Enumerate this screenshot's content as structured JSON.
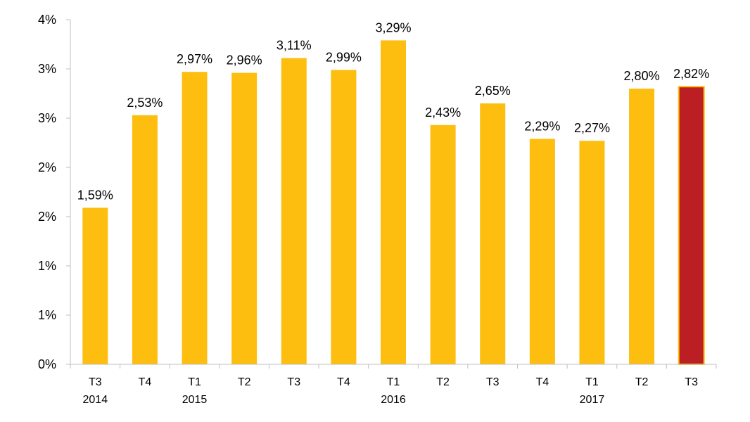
{
  "chart_data": {
    "type": "bar",
    "categories": [
      {
        "quarter": "T3",
        "year": "2014"
      },
      {
        "quarter": "T4",
        "year": ""
      },
      {
        "quarter": "T1",
        "year": "2015"
      },
      {
        "quarter": "T2",
        "year": ""
      },
      {
        "quarter": "T3",
        "year": ""
      },
      {
        "quarter": "T4",
        "year": ""
      },
      {
        "quarter": "T1",
        "year": "2016"
      },
      {
        "quarter": "T2",
        "year": ""
      },
      {
        "quarter": "T3",
        "year": ""
      },
      {
        "quarter": "T4",
        "year": ""
      },
      {
        "quarter": "T1",
        "year": "2017"
      },
      {
        "quarter": "T2",
        "year": ""
      },
      {
        "quarter": "T3",
        "year": ""
      }
    ],
    "values": [
      1.59,
      2.53,
      2.97,
      2.96,
      3.11,
      2.99,
      3.29,
      2.43,
      2.65,
      2.29,
      2.27,
      2.8,
      2.82
    ],
    "data_labels": [
      "1,59%",
      "2,53%",
      "2,97%",
      "2,96%",
      "3,11%",
      "2,99%",
      "3,29%",
      "2,43%",
      "2,65%",
      "2,29%",
      "2,27%",
      "2,80%",
      "2,82%"
    ],
    "y_ticks": [
      "0%",
      "1%",
      "1%",
      "2%",
      "2%",
      "3%",
      "3%",
      "4%"
    ],
    "y_tick_values": [
      0,
      0.5,
      1.0,
      1.5,
      2.0,
      2.5,
      3.0,
      3.5
    ],
    "ylim": [
      0,
      3.5
    ],
    "title": "",
    "xlabel": "",
    "ylabel": "",
    "grid": false,
    "legend": "none",
    "colors": {
      "bar": "#fdbe10",
      "highlight_bar": "#bb1e23",
      "highlight_border": "#fdbe10",
      "axis": "#bfbfbf"
    },
    "highlight_index": 12
  }
}
